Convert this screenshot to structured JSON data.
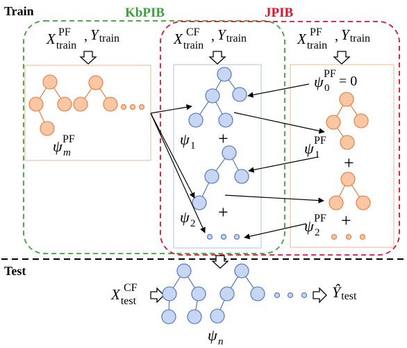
{
  "labels": {
    "train": "Train",
    "test": "Test",
    "kbpib": "KbPIB",
    "jpib": "JPIB",
    "x_var": "X",
    "y_var": "Y",
    "train_sub": "train",
    "test_sub": "test",
    "pf_sup": "PF",
    "cf_sup": "CF",
    "comma": ",",
    "psi": "ψ",
    "psi_m_sub": "m",
    "psi_1_sub": "1",
    "psi_2_sub": "2",
    "psi_0_sub": "0",
    "psi_n_sub": "n",
    "equals_zero": " = 0",
    "plus": "+",
    "y_hat": "Ŷ"
  },
  "colors": {
    "kbpib_green": "#3aa13a",
    "jpib_red": "#e0102a",
    "orange_fill": "#f9c7a3",
    "orange_stroke": "#e8864a",
    "blue_fill": "#c7d6f2",
    "blue_stroke": "#5b7fc9",
    "panel_orange_border": "#f0b48f",
    "panel_blue_border": "#a8c3e0"
  },
  "icons": {
    "arrow": "hollow-down-arrow",
    "right_arrow": "hollow-right-arrow"
  }
}
